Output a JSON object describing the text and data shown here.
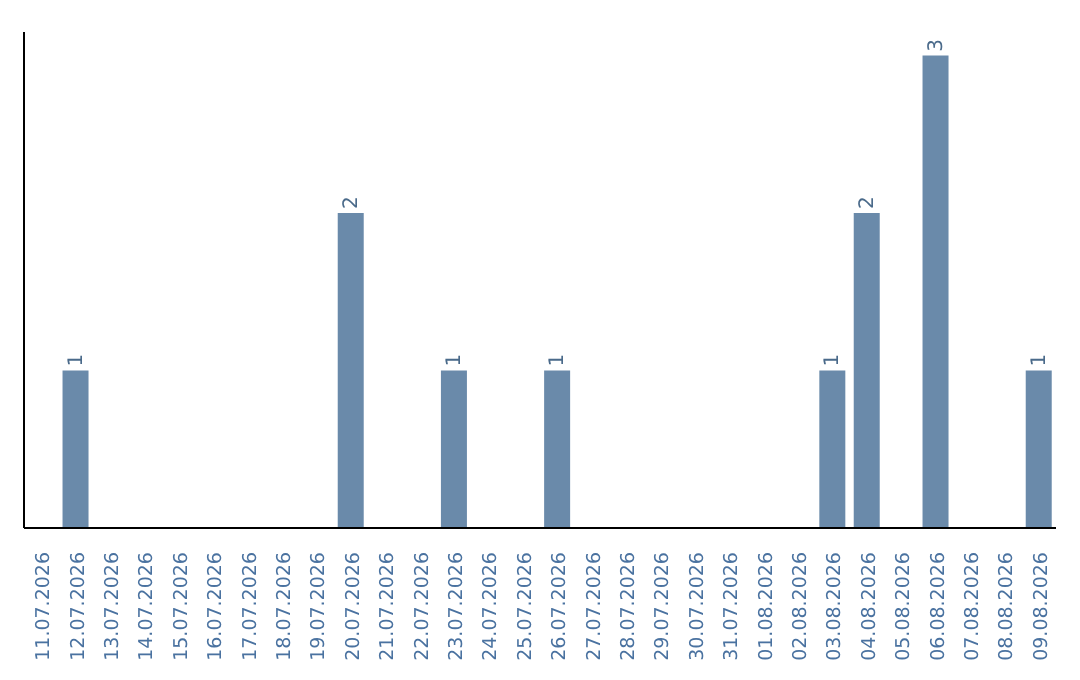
{
  "chart_data": {
    "type": "bar",
    "categories": [
      "11.07.2026",
      "12.07.2026",
      "13.07.2026",
      "14.07.2026",
      "15.07.2026",
      "16.07.2026",
      "17.07.2026",
      "18.07.2026",
      "19.07.2026",
      "20.07.2026",
      "21.07.2026",
      "22.07.2026",
      "23.07.2026",
      "24.07.2026",
      "25.07.2026",
      "26.07.2026",
      "27.07.2026",
      "28.07.2026",
      "29.07.2026",
      "30.07.2026",
      "31.07.2026",
      "01.08.2026",
      "02.08.2026",
      "03.08.2026",
      "04.08.2026",
      "05.08.2026",
      "06.08.2026",
      "07.08.2026",
      "08.08.2026",
      "09.08.2026"
    ],
    "values": [
      0,
      1,
      0,
      0,
      0,
      0,
      0,
      0,
      0,
      2,
      0,
      0,
      1,
      0,
      0,
      1,
      0,
      0,
      0,
      0,
      0,
      0,
      0,
      1,
      2,
      0,
      3,
      0,
      0,
      1
    ],
    "value_labels": [
      null,
      "1",
      null,
      null,
      null,
      null,
      null,
      null,
      null,
      "2",
      null,
      null,
      "1",
      null,
      null,
      "1",
      null,
      null,
      null,
      null,
      null,
      null,
      null,
      "1",
      "2",
      null,
      "3",
      null,
      null,
      "1"
    ],
    "color": "#6a8aaa",
    "relative": false,
    "tick_labels": "x",
    "grid": false,
    "legend": false
  }
}
